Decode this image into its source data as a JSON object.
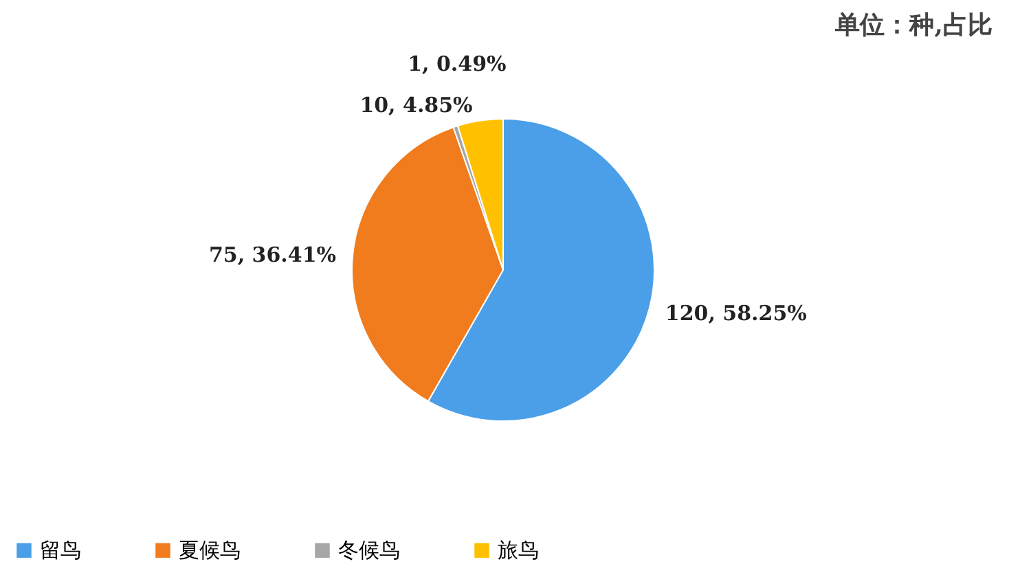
{
  "chart_data": {
    "type": "pie",
    "categories": [
      "留鸟",
      "夏候鸟",
      "冬候鸟",
      "旅鸟"
    ],
    "values": [
      120,
      75,
      1,
      10
    ],
    "colors": [
      "#4a9fe8",
      "#f07c1e",
      "#a6a6a6",
      "#ffc000"
    ],
    "value_labels": [
      "120, 58.25%",
      "75, 36.41%",
      "1, 0.49%",
      "10, 4.85%"
    ],
    "annotations": [
      "单位：种,占比"
    ],
    "legend": "bottom"
  }
}
